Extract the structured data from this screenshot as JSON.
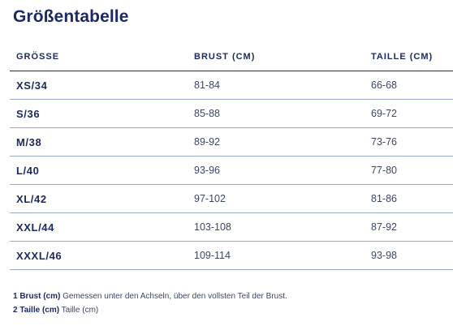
{
  "title": "Größentabelle",
  "table": {
    "headers": [
      "GRÖSSE",
      "BRUST (CM)",
      "TAILLE (CM)"
    ],
    "rows": [
      {
        "size": "XS/34",
        "chest": "81-84",
        "waist": "66-68"
      },
      {
        "size": "S/36",
        "chest": "85-88",
        "waist": "69-72"
      },
      {
        "size": "M/38",
        "chest": "89-92",
        "waist": "73-76"
      },
      {
        "size": "L/40",
        "chest": "93-96",
        "waist": "77-80"
      },
      {
        "size": "XL/42",
        "chest": "97-102",
        "waist": "81-86"
      },
      {
        "size": "XXL/44",
        "chest": "103-108",
        "waist": "87-92"
      },
      {
        "size": "XXXL/46",
        "chest": "109-114",
        "waist": "93-98"
      }
    ]
  },
  "notes": [
    {
      "label": "1 Brust (cm)",
      "text": "Gemessen unter den Achseln, über den vollsten Teil der Brust."
    },
    {
      "label": "2 Taille (cm)",
      "text": "Taille (cm)"
    }
  ],
  "colors": {
    "heading": "#1d2a63",
    "body_text": "#3c4666",
    "row_divider": "#9aa8c4"
  }
}
